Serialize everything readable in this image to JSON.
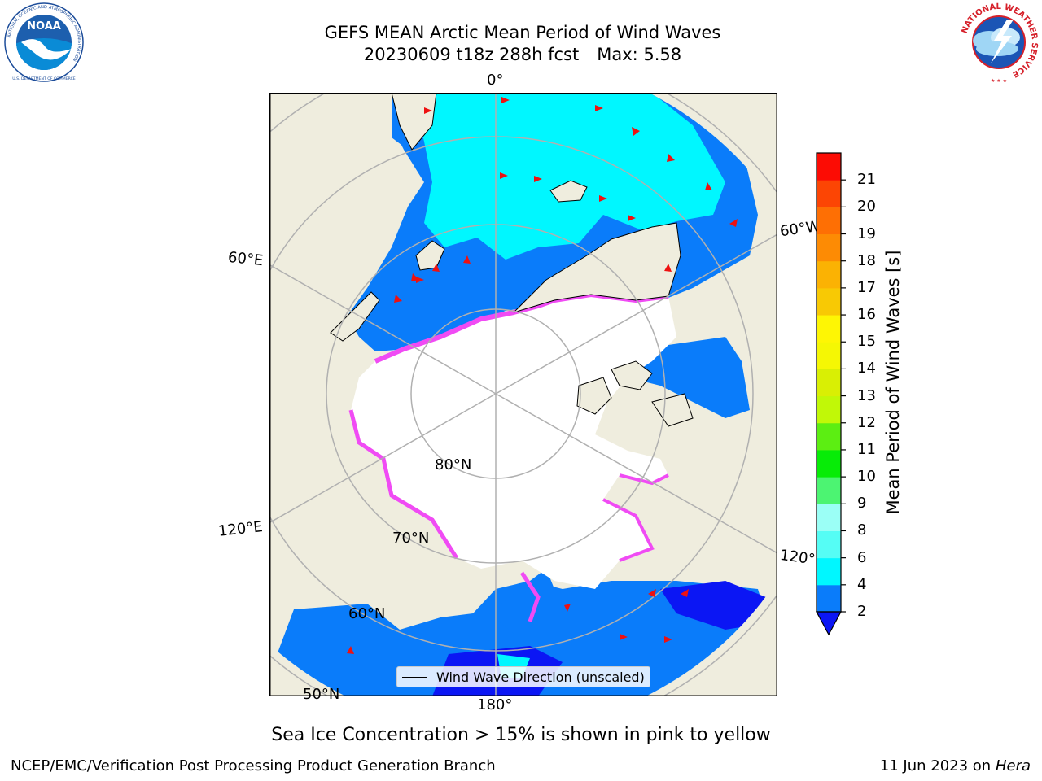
{
  "header": {
    "title_line1": "GEFS MEAN Arctic Mean Period of Wind Waves",
    "title_line2_run": "20230609 t18z 288h fcst",
    "title_line2_max": "Max: 5.58"
  },
  "logos": {
    "left": {
      "name": "NOAA",
      "ring_text": "NATIONAL OCEANIC AND ATMOSPHERIC ADMINISTRATION",
      "bottom_text": "U.S. DEPARTMENT OF COMMERCE",
      "color": "#1d4d9a"
    },
    "right": {
      "ring_text": "NATIONAL WEATHER SERVICE",
      "color": "#d6202a"
    }
  },
  "map": {
    "projection": "north-polar-stereographic",
    "colors": {
      "land": "#efedde",
      "no_data": "#ffffff",
      "ocean_2_4": "#0a7cfa",
      "ocean_4_6": "#00f7ff",
      "below_2": "#0b16f4",
      "sea_ice_edge": "#f04bf4",
      "grid": "#b0b0b0",
      "arrow": "#ee1111"
    },
    "longitude_labels": [
      "0°",
      "60°W",
      "120°W",
      "180°",
      "120°E",
      "60°E"
    ],
    "latitude_labels": [
      "80°N",
      "70°N",
      "60°N",
      "50°N"
    ],
    "legend_label": "Wind Wave Direction (unscaled)"
  },
  "colorbar": {
    "label": "Mean Period of Wind Waves [s]",
    "ticks": [
      "2",
      "4",
      "6",
      "8",
      "9",
      "10",
      "11",
      "12",
      "13",
      "14",
      "15",
      "16",
      "17",
      "18",
      "19",
      "20",
      "21"
    ],
    "colors": [
      "#0a7cfa",
      "#00f7ff",
      "#55fdf5",
      "#9bfff6",
      "#4cf472",
      "#07ec07",
      "#5cee12",
      "#c1f807",
      "#d9ef04",
      "#f5f704",
      "#fef604",
      "#f8c904",
      "#fbb203",
      "#fd8b04",
      "#fe6f04",
      "#fc4504",
      "#fc0c04"
    ],
    "extend_color": "#0b16f4"
  },
  "caption": "Sea Ice Concentration > 15% is shown in pink to yellow",
  "footer": {
    "left": "NCEP/EMC/Verification Post Processing Product Generation Branch",
    "right_date": "11 Jun 2023 on",
    "right_host": "Hera"
  }
}
